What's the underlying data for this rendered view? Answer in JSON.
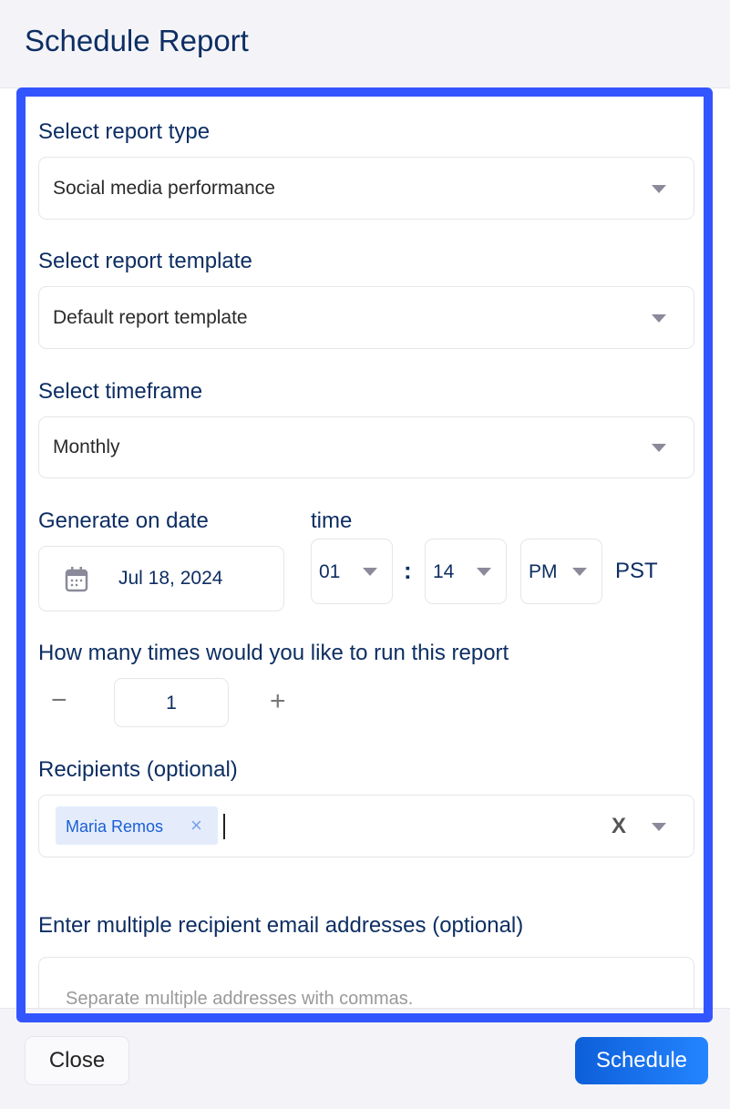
{
  "dialog": {
    "title": "Schedule Report"
  },
  "report_type": {
    "label": "Select report type",
    "value": "Social media performance"
  },
  "report_template": {
    "label": "Select report template",
    "value": "Default report template"
  },
  "timeframe": {
    "label": "Select timeframe",
    "value": "Monthly"
  },
  "date": {
    "label": "Generate on date",
    "value": "Jul 18, 2024",
    "icon": "calendar-icon"
  },
  "time": {
    "label": "time",
    "hour": "01",
    "separator": ":",
    "minute": "14",
    "ampm": "PM",
    "timezone": "PST"
  },
  "runs": {
    "label": "How many times would you like to run this report",
    "value": "1",
    "minus": "−",
    "plus": "+"
  },
  "recipients": {
    "label": "Recipients (optional)",
    "chips": [
      {
        "name": "Maria Remos"
      }
    ],
    "chip_remove": "×",
    "clear": "X"
  },
  "emails": {
    "label": "Enter multiple recipient email addresses (optional)",
    "placeholder": "Separate multiple addresses with commas."
  },
  "footer": {
    "close_label": "Close",
    "schedule_label": "Schedule"
  },
  "colors": {
    "accent": "#3355ff",
    "title": "#0d2e63",
    "primary_button": "#1a6fe8",
    "chip_bg": "#e4ecfb",
    "chip_text": "#1a5fd6"
  }
}
